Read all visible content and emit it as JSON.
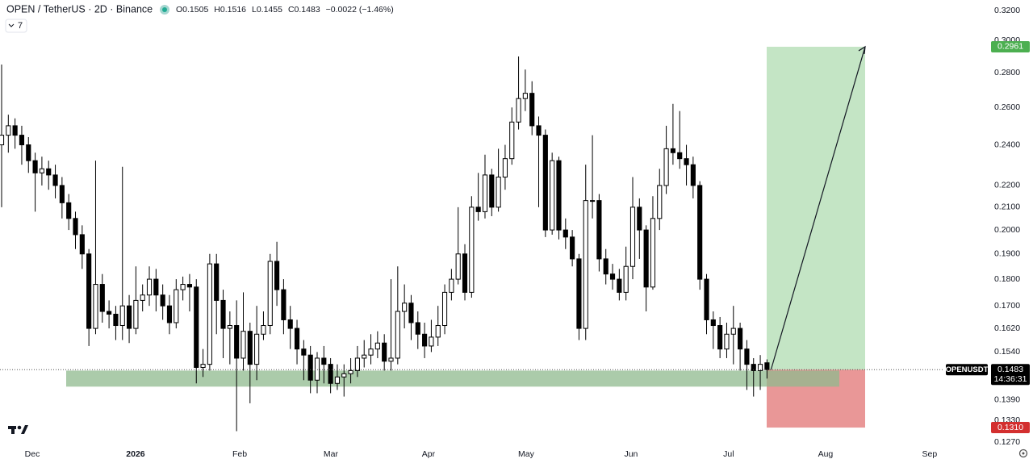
{
  "chart_data": {
    "type": "candlestick",
    "symbol": "OPEN / TetherUS · 2D · Binance",
    "ohlc_text": [
      "O0.1505",
      "H0.1516",
      "L0.1455",
      "C0.1483",
      "−0.0022 (−1.46%)"
    ],
    "indicators": "7",
    "up_color": "#ffffff",
    "down_color": "#000000",
    "log_scale": true,
    "open": [
      0.24,
      0.245,
      0.25,
      0.245,
      0.24,
      0.232,
      0.226,
      0.228,
      0.225,
      0.22,
      0.212,
      0.205,
      0.198,
      0.19,
      0.162,
      0.178,
      0.168,
      0.167,
      0.163,
      0.17,
      0.162,
      0.172,
      0.174,
      0.18,
      0.174,
      0.17,
      0.164,
      0.176,
      0.178,
      0.177,
      0.149,
      0.15,
      0.186,
      0.172,
      0.162,
      0.163,
      0.152,
      0.161,
      0.15,
      0.16,
      0.163,
      0.187,
      0.176,
      0.165,
      0.162,
      0.155,
      0.153,
      0.145,
      0.152,
      0.15,
      0.144,
      0.146,
      0.147,
      0.148,
      0.152,
      0.153,
      0.155,
      0.157,
      0.151,
      0.152,
      0.168,
      0.171,
      0.164,
      0.16,
      0.156,
      0.159,
      0.163,
      0.175,
      0.18,
      0.19,
      0.175,
      0.21,
      0.208,
      0.225,
      0.21,
      0.224,
      0.233,
      0.252,
      0.265,
      0.268,
      0.25,
      0.245,
      0.2,
      0.232,
      0.2,
      0.197,
      0.188,
      0.162,
      0.213,
      0.213,
      0.188,
      0.182,
      0.18,
      0.175,
      0.185,
      0.21,
      0.2,
      0.177,
      0.205,
      0.22,
      0.238,
      0.236,
      0.233,
      0.23,
      0.22,
      0.18,
      0.165,
      0.163,
      0.155,
      0.16,
      0.162,
      0.155,
      0.15,
      0.148,
      0.1505
    ],
    "high": [
      0.285,
      0.256,
      0.254,
      0.25,
      0.244,
      0.236,
      0.234,
      0.232,
      0.23,
      0.224,
      0.216,
      0.208,
      0.202,
      0.192,
      0.232,
      0.182,
      0.172,
      0.17,
      0.229,
      0.174,
      0.185,
      0.178,
      0.185,
      0.184,
      0.178,
      0.174,
      0.18,
      0.181,
      0.182,
      0.18,
      0.155,
      0.19,
      0.19,
      0.176,
      0.168,
      0.172,
      0.175,
      0.164,
      0.17,
      0.168,
      0.19,
      0.195,
      0.18,
      0.17,
      0.165,
      0.158,
      0.156,
      0.154,
      0.156,
      0.152,
      0.15,
      0.15,
      0.152,
      0.156,
      0.158,
      0.16,
      0.161,
      0.16,
      0.18,
      0.185,
      0.178,
      0.174,
      0.168,
      0.164,
      0.165,
      0.17,
      0.178,
      0.184,
      0.21,
      0.194,
      0.215,
      0.226,
      0.235,
      0.228,
      0.238,
      0.24,
      0.26,
      0.29,
      0.282,
      0.275,
      0.255,
      0.248,
      0.236,
      0.234,
      0.205,
      0.2,
      0.19,
      0.23,
      0.245,
      0.216,
      0.192,
      0.186,
      0.184,
      0.193,
      0.224,
      0.214,
      0.202,
      0.215,
      0.228,
      0.25,
      0.262,
      0.258,
      0.24,
      0.234,
      0.222,
      0.182,
      0.168,
      0.166,
      0.164,
      0.17,
      0.164,
      0.158,
      0.152,
      0.153,
      0.1516
    ],
    "low": [
      0.21,
      0.236,
      0.238,
      0.23,
      0.226,
      0.208,
      0.22,
      0.218,
      0.214,
      0.205,
      0.2,
      0.192,
      0.184,
      0.156,
      0.16,
      0.164,
      0.162,
      0.158,
      0.158,
      0.157,
      0.16,
      0.168,
      0.17,
      0.168,
      0.165,
      0.16,
      0.162,
      0.172,
      0.168,
      0.144,
      0.146,
      0.148,
      0.16,
      0.152,
      0.15,
      0.13,
      0.148,
      0.138,
      0.145,
      0.158,
      0.16,
      0.17,
      0.16,
      0.155,
      0.15,
      0.145,
      0.141,
      0.141,
      0.144,
      0.141,
      0.142,
      0.14,
      0.144,
      0.146,
      0.149,
      0.15,
      0.152,
      0.148,
      0.148,
      0.15,
      0.162,
      0.158,
      0.155,
      0.152,
      0.154,
      0.156,
      0.16,
      0.172,
      0.178,
      0.172,
      0.173,
      0.204,
      0.205,
      0.206,
      0.208,
      0.218,
      0.23,
      0.248,
      0.258,
      0.245,
      0.21,
      0.197,
      0.198,
      0.196,
      0.192,
      0.185,
      0.158,
      0.158,
      0.205,
      0.183,
      0.178,
      0.176,
      0.172,
      0.172,
      0.18,
      0.188,
      0.168,
      0.176,
      0.2,
      0.216,
      0.23,
      0.228,
      0.22,
      0.214,
      0.176,
      0.16,
      0.155,
      0.152,
      0.152,
      0.15,
      0.148,
      0.142,
      0.14,
      0.142,
      0.1455
    ],
    "close": [
      0.245,
      0.25,
      0.245,
      0.24,
      0.232,
      0.226,
      0.228,
      0.225,
      0.22,
      0.212,
      0.205,
      0.198,
      0.19,
      0.162,
      0.178,
      0.168,
      0.167,
      0.163,
      0.17,
      0.162,
      0.172,
      0.174,
      0.18,
      0.174,
      0.17,
      0.164,
      0.176,
      0.178,
      0.177,
      0.149,
      0.15,
      0.186,
      0.172,
      0.162,
      0.163,
      0.152,
      0.161,
      0.15,
      0.16,
      0.163,
      0.187,
      0.176,
      0.165,
      0.162,
      0.155,
      0.153,
      0.145,
      0.152,
      0.15,
      0.144,
      0.146,
      0.147,
      0.148,
      0.152,
      0.153,
      0.155,
      0.157,
      0.151,
      0.152,
      0.168,
      0.171,
      0.164,
      0.16,
      0.156,
      0.159,
      0.163,
      0.175,
      0.18,
      0.19,
      0.175,
      0.21,
      0.208,
      0.225,
      0.21,
      0.224,
      0.233,
      0.252,
      0.265,
      0.268,
      0.25,
      0.245,
      0.2,
      0.232,
      0.2,
      0.197,
      0.188,
      0.162,
      0.213,
      0.213,
      0.188,
      0.182,
      0.18,
      0.175,
      0.185,
      0.21,
      0.2,
      0.177,
      0.205,
      0.22,
      0.238,
      0.236,
      0.233,
      0.23,
      0.22,
      0.18,
      0.165,
      0.163,
      0.155,
      0.16,
      0.162,
      0.155,
      0.15,
      0.148,
      0.15,
      0.1483
    ],
    "xlim": [
      -0.24,
      140.4
    ],
    "xticks": [
      {
        "value": 4.57,
        "label": "Dec"
      },
      {
        "value": 19.95,
        "label": "2026"
      },
      {
        "value": 35.46,
        "label": "Feb"
      },
      {
        "value": 49.04,
        "label": "Mar"
      },
      {
        "value": 63.58,
        "label": "Apr"
      },
      {
        "value": 78.13,
        "label": "May"
      },
      {
        "value": 93.75,
        "label": "Jun"
      },
      {
        "value": 108.29,
        "label": "Jul"
      },
      {
        "value": 122.72,
        "label": "Aug"
      },
      {
        "value": 138.22,
        "label": "Sep"
      }
    ],
    "ylim": [
      0.127,
      0.32
    ],
    "yticks": [
      {
        "value": 0.32,
        "label": "0.3200"
      },
      {
        "value": 0.3,
        "label": "0.3000"
      },
      {
        "value": 0.28,
        "label": "0.2800"
      },
      {
        "value": 0.26,
        "label": "0.2600"
      },
      {
        "value": 0.24,
        "label": "0.2400"
      },
      {
        "value": 0.22,
        "label": "0.2200"
      },
      {
        "value": 0.21,
        "label": "0.2100"
      },
      {
        "value": 0.2,
        "label": "0.2000"
      },
      {
        "value": 0.19,
        "label": "0.1900"
      },
      {
        "value": 0.18,
        "label": "0.1800"
      },
      {
        "value": 0.17,
        "label": "0.1700"
      },
      {
        "value": 0.162,
        "label": "0.1620"
      },
      {
        "value": 0.154,
        "label": "0.1540"
      },
      {
        "value": 0.139,
        "label": "0.1390"
      },
      {
        "value": 0.133,
        "label": "0.1330"
      },
      {
        "value": 0.127,
        "label": "0.1270"
      }
    ],
    "support_zone": {
      "low": 0.143,
      "high": 0.148,
      "color": "#8fb98e"
    },
    "last_price": {
      "ticker": "OPENUSDT",
      "value": 0.1483,
      "label": "0.1483",
      "countdown": "14:36:31"
    },
    "target": {
      "value": 0.2961,
      "label": "0.2961",
      "color": "#4caf50"
    },
    "stop": {
      "value": 0.131,
      "label": "0.1310",
      "color": "#d32f2f"
    }
  }
}
